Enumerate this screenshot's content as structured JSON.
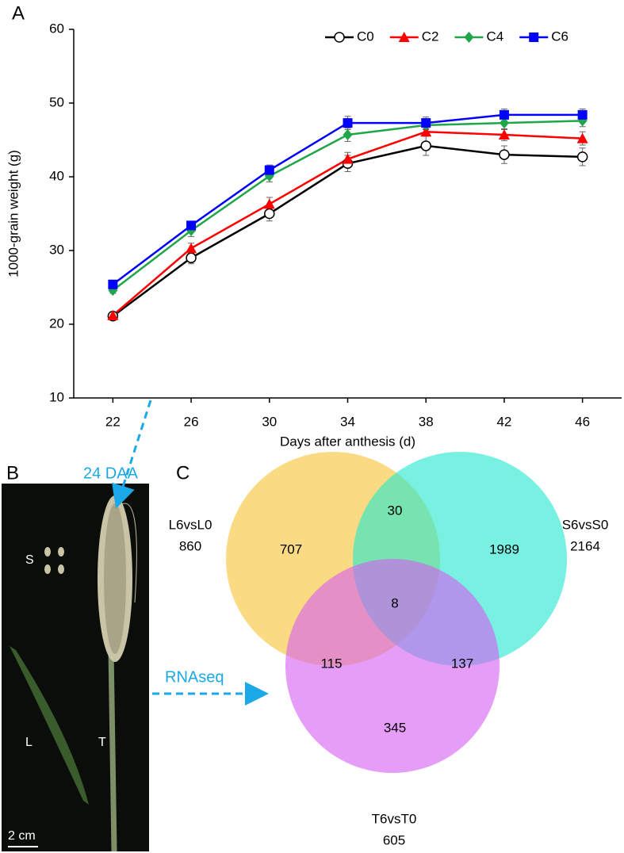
{
  "panels": {
    "a": "A",
    "b": "B",
    "c": "C"
  },
  "photo": {
    "stage": "24 DAA",
    "method": "RNAseq",
    "labels": [
      "S",
      "L",
      "T"
    ],
    "scale": "2 cm"
  },
  "chart_data": [
    {
      "type": "line",
      "x_label": "Days after anthesis (d)",
      "y_label": "1000-grain weight (g)",
      "x": [
        22,
        26,
        30,
        34,
        38,
        42,
        46
      ],
      "xlim": [
        20,
        48
      ],
      "xticks": [
        22,
        26,
        30,
        34,
        38,
        42,
        46
      ],
      "ylim": [
        10,
        60
      ],
      "yticks": [
        10,
        20,
        30,
        40,
        50,
        60
      ],
      "legend": "upper right",
      "series": [
        {
          "name": "C0",
          "color": "#000000",
          "marker": "open-circle",
          "values": [
            21.1,
            29.0,
            35.0,
            41.8,
            44.2,
            43.0,
            42.7
          ],
          "errors": [
            0.3,
            0.8,
            1.0,
            1.1,
            1.3,
            1.2,
            1.2
          ]
        },
        {
          "name": "C2",
          "color": "#ff0000",
          "marker": "triangle",
          "values": [
            21.2,
            30.3,
            36.3,
            42.4,
            46.1,
            45.7,
            45.2
          ],
          "errors": [
            0.3,
            0.7,
            0.9,
            0.9,
            0.6,
            0.8,
            0.9
          ]
        },
        {
          "name": "C4",
          "color": "#1fa64a",
          "marker": "diamond",
          "values": [
            24.6,
            32.7,
            40.1,
            45.7,
            47.0,
            47.3,
            47.6
          ],
          "errors": [
            0.4,
            0.8,
            0.8,
            0.9,
            0.6,
            0.9,
            0.8
          ]
        },
        {
          "name": "C6",
          "color": "#0000ff",
          "marker": "square",
          "values": [
            25.4,
            33.4,
            40.9,
            47.3,
            47.3,
            48.4,
            48.4
          ],
          "errors": [
            0.3,
            0.5,
            0.7,
            0.9,
            0.8,
            0.8,
            0.8
          ]
        }
      ]
    },
    {
      "type": "venn",
      "sets": [
        {
          "name": "L6vsL0",
          "total": 860,
          "color": "#f7c331"
        },
        {
          "name": "S6vsS0",
          "total": 2164,
          "color": "#1ee8cf"
        },
        {
          "name": "T6vsT0",
          "total": 605,
          "color": "#d65cf2"
        }
      ],
      "values": [
        707,
        30,
        1989,
        8,
        115,
        137,
        345
      ]
    }
  ]
}
